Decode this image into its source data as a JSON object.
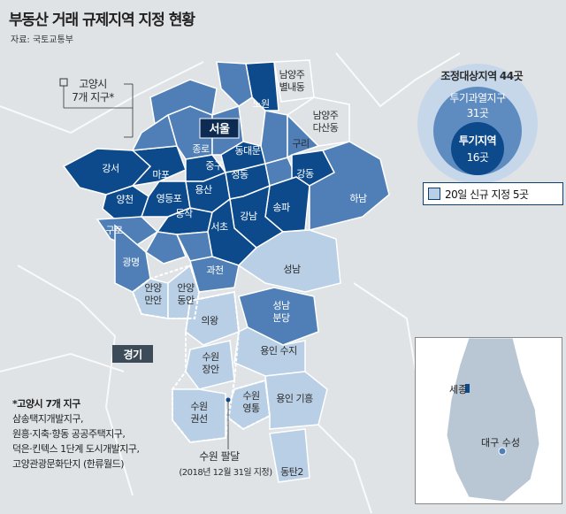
{
  "title": "부동산 거래 규제지역 지정 현황",
  "source": "자료: 국토교통부",
  "goyang_label": "고양시\n7개 지구*",
  "goyang_label_line1": "고양시",
  "goyang_label_line2": "7개 지구*",
  "colors": {
    "dark": "#0d4a8c",
    "mid": "#4f7fb6",
    "light": "#b9cfe6",
    "bg": "#dfe3e6"
  },
  "summary": {
    "total_label": "조정대상지역",
    "total_value": "44곳",
    "overheated_label": "투기과열지구",
    "overheated_value": "31곳",
    "speculative_label": "투기지역",
    "speculative_value": "16곳"
  },
  "legend": {
    "new_label": "20일 신규 지정 5곳"
  },
  "regions": {
    "seoul": "서울",
    "gyeonggi": "경기",
    "labels": {
      "namyangju_byeollae": "남양주\n별내동",
      "nowon": "노원",
      "namyangju_dasan": "남양주\n다산동",
      "guri": "구리",
      "jongno": "종로",
      "dongdaemun": "동대문",
      "junggu": "중구",
      "seongdong": "성동",
      "gangdong": "강동",
      "gangseo": "강서",
      "mapo": "마포",
      "yangcheon": "양천",
      "yeongdeungpo": "영등포",
      "yongsan": "용산",
      "guro": "구로",
      "dongjak": "동작",
      "gangnam": "강남",
      "songpa": "송파",
      "hanam": "하남",
      "seocho": "서초",
      "gwangmyeong": "광명",
      "gwacheon": "과천",
      "seongnam": "성남",
      "anyang_manan": "안양\n만안",
      "anyang_dongan": "안양\n동안",
      "seongnam_bundang": "성남\n분당",
      "uiwang": "의왕",
      "yongin_suji": "용인 수지",
      "suwon_jangan": "수원\n장안",
      "suwon_gwonseon": "수원\n권선",
      "suwon_yeongtong": "수원\n영통",
      "yongin_giheung": "용인 기흥",
      "suwon_paldal": "수원 팔달",
      "paldal_note": "(2018년 12월 31일 지정)",
      "dongtan2": "동탄2"
    }
  },
  "note": {
    "title": "*고양시 7개 지구",
    "lines": [
      "삼송택지개발지구,",
      "원흥·지축·향동 공공주택지구,",
      "덕은·킨텍스 1단계 도시개발지구,",
      "고양관광문화단지 (한류월드)"
    ]
  },
  "inset": {
    "sejong": "세종",
    "daegu_suseong": "대구 수성"
  }
}
